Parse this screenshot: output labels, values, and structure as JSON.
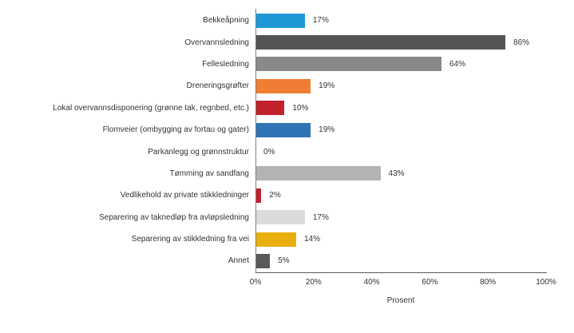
{
  "chart_data": {
    "type": "bar",
    "orientation": "horizontal",
    "title": "",
    "xlabel": "Prosent",
    "xlim": [
      0,
      100
    ],
    "x_ticks": [
      "0%",
      "20%",
      "40%",
      "60%",
      "80%",
      "100%"
    ],
    "x_tick_values": [
      0,
      20,
      40,
      60,
      80,
      100
    ],
    "grid": false,
    "legend": null,
    "axis_color": "#7f7f7f",
    "bars": [
      {
        "label": "Bekkeåpning",
        "value": 17,
        "display": "17%",
        "color": "#2098d7"
      },
      {
        "label": "Overvannsledning",
        "value": 86,
        "display": "86%",
        "color": "#545454"
      },
      {
        "label": "Fellesledning",
        "value": 64,
        "display": "64%",
        "color": "#898989"
      },
      {
        "label": "Dreneringsgrøfter",
        "value": 19,
        "display": "19%",
        "color": "#ef7d33"
      },
      {
        "label": "Lokal overvannsdisponering (grønne tak, regnbed, etc.)",
        "value": 10,
        "display": "10%",
        "color": "#c2202d"
      },
      {
        "label": "Flomveier (ombygging av fortau og gater)",
        "value": 19,
        "display": "19%",
        "color": "#2e74b5"
      },
      {
        "label": "Parkanlegg og grønnstruktur",
        "value": 0,
        "display": "0%",
        "color": "#2098d7"
      },
      {
        "label": "Tømming av sandfang",
        "value": 43,
        "display": "43%",
        "color": "#b3b3b3"
      },
      {
        "label": "Vedlikehold av private stikkledninger",
        "value": 2,
        "display": "2%",
        "color": "#c2202d"
      },
      {
        "label": "Separering av taknedløp fra avløpsledning",
        "value": 17,
        "display": "17%",
        "color": "#dbdbdb"
      },
      {
        "label": "Separering av stikkledning fra vei",
        "value": 14,
        "display": "14%",
        "color": "#e9b00d"
      },
      {
        "label": "Annet",
        "value": 5,
        "display": "5%",
        "color": "#595959"
      }
    ]
  }
}
